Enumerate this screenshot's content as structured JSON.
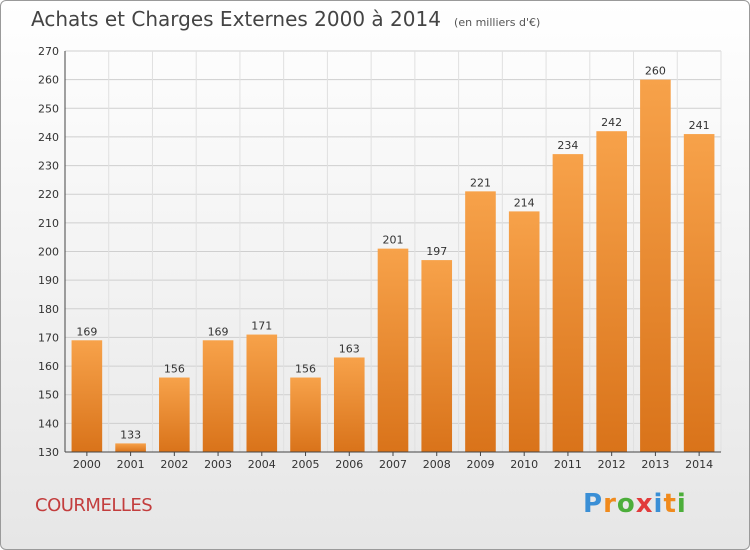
{
  "chart_data": {
    "type": "bar",
    "title": "Achats et Charges Externes 2000 à 2014",
    "subtitle": "(en milliers d'€)",
    "categories": [
      "2000",
      "2001",
      "2002",
      "2003",
      "2004",
      "2005",
      "2006",
      "2007",
      "2008",
      "2009",
      "2010",
      "2011",
      "2012",
      "2013",
      "2014"
    ],
    "values": [
      169,
      133,
      156,
      169,
      171,
      156,
      163,
      201,
      197,
      221,
      214,
      234,
      242,
      260,
      241
    ],
    "ylim": [
      130,
      270
    ],
    "yticks": [
      130,
      140,
      150,
      160,
      170,
      180,
      190,
      200,
      210,
      220,
      230,
      240,
      250,
      260,
      270
    ],
    "grid": true,
    "bar_color": "#f39c38",
    "bar_color_dark": "#d9781c"
  },
  "commune": "COURMELLES",
  "logo": {
    "letters": [
      "P",
      "r",
      "o",
      "x",
      "i",
      "t",
      "i"
    ],
    "colors": [
      "#3a8fd6",
      "#f08a1c",
      "#4cae3a",
      "#e23b3b",
      "#3a8fd6",
      "#f08a1c",
      "#4cae3a"
    ]
  }
}
